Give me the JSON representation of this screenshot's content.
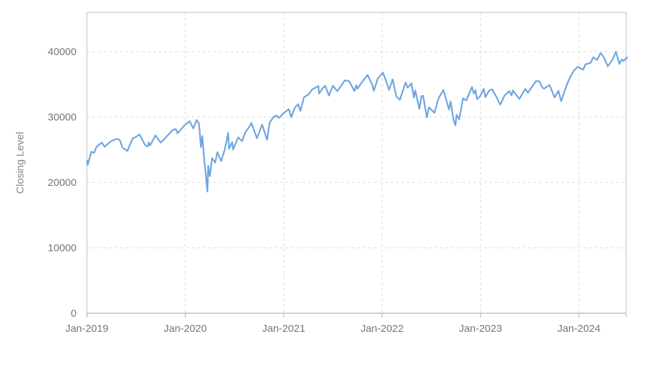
{
  "page": {
    "background": "#ffffff"
  },
  "chart_data": {
    "type": "line",
    "title": "",
    "xlabel": "",
    "ylabel": "Closing Level",
    "legend_position": "none",
    "grid": "dashed",
    "x_ticks": [
      2019,
      2020,
      2021,
      2022,
      2023,
      2024
    ],
    "x_tick_labels": [
      "Jan-2019",
      "Jan-2020",
      "Jan-2021",
      "Jan-2022",
      "Jan-2023",
      "Jan-2024"
    ],
    "y_ticks": [
      0,
      10000,
      20000,
      30000,
      40000
    ],
    "y_tick_labels": [
      "0",
      "10000",
      "20000",
      "30000",
      "40000"
    ],
    "ylim": [
      0,
      46000
    ],
    "xlim_decimal_years": [
      2019.0,
      2024.48
    ],
    "colors": {
      "line": "#6fa6e2",
      "grid": "#d9d9d9",
      "border": "#cccccc",
      "axis_line": "#b4c3da",
      "tick_text": "#757575",
      "axis_title_text": "#858585"
    },
    "series": [
      {
        "name": "Closing Level",
        "points": [
          [
            "2019-01-02",
            23346
          ],
          [
            "2019-01-04",
            22686
          ],
          [
            "2019-01-18",
            24706
          ],
          [
            "2019-01-28",
            24528
          ],
          [
            "2019-02-05",
            25411
          ],
          [
            "2019-02-25",
            26091
          ],
          [
            "2019-03-08",
            25450
          ],
          [
            "2019-03-21",
            25962
          ],
          [
            "2019-04-05",
            26425
          ],
          [
            "2019-04-23",
            26656
          ],
          [
            "2019-05-03",
            26505
          ],
          [
            "2019-05-13",
            25325
          ],
          [
            "2019-05-31",
            24815
          ],
          [
            "2019-06-20",
            26753
          ],
          [
            "2019-07-03",
            26966
          ],
          [
            "2019-07-15",
            27359
          ],
          [
            "2019-08-05",
            25718
          ],
          [
            "2019-08-14",
            25479
          ],
          [
            "2019-08-19",
            26136
          ],
          [
            "2019-08-23",
            25629
          ],
          [
            "2019-09-12",
            27182
          ],
          [
            "2019-10-02",
            26079
          ],
          [
            "2019-10-18",
            26770
          ],
          [
            "2019-11-15",
            28005
          ],
          [
            "2019-11-27",
            28164
          ],
          [
            "2019-12-03",
            27502
          ],
          [
            "2019-12-27",
            28645
          ],
          [
            "2020-01-02",
            28869
          ],
          [
            "2020-01-17",
            29348
          ],
          [
            "2020-01-31",
            28256
          ],
          [
            "2020-02-12",
            29551
          ],
          [
            "2020-02-21",
            28992
          ],
          [
            "2020-02-28",
            25409
          ],
          [
            "2020-03-04",
            27090
          ],
          [
            "2020-03-11",
            23553
          ],
          [
            "2020-03-17",
            21237
          ],
          [
            "2020-03-23",
            18592
          ],
          [
            "2020-03-26",
            22552
          ],
          [
            "2020-04-01",
            20943
          ],
          [
            "2020-04-09",
            23719
          ],
          [
            "2020-04-21",
            23019
          ],
          [
            "2020-04-29",
            24634
          ],
          [
            "2020-05-13",
            23248
          ],
          [
            "2020-05-26",
            24995
          ],
          [
            "2020-06-08",
            27572
          ],
          [
            "2020-06-11",
            25128
          ],
          [
            "2020-06-23",
            26156
          ],
          [
            "2020-06-26",
            25016
          ],
          [
            "2020-07-15",
            26870
          ],
          [
            "2020-07-30",
            26313
          ],
          [
            "2020-08-11",
            27686
          ],
          [
            "2020-08-28",
            28654
          ],
          [
            "2020-09-02",
            29100
          ],
          [
            "2020-09-23",
            26763
          ],
          [
            "2020-10-12",
            28838
          ],
          [
            "2020-10-30",
            26502
          ],
          [
            "2020-11-09",
            29158
          ],
          [
            "2020-11-24",
            30046
          ],
          [
            "2020-12-04",
            30218
          ],
          [
            "2020-12-14",
            29861
          ],
          [
            "2020-12-31",
            30606
          ],
          [
            "2021-01-20",
            31188
          ],
          [
            "2021-01-29",
            29983
          ],
          [
            "2021-02-12",
            31458
          ],
          [
            "2021-02-24",
            31962
          ],
          [
            "2021-03-04",
            30924
          ],
          [
            "2021-03-17",
            33015
          ],
          [
            "2021-04-05",
            33527
          ],
          [
            "2021-04-16",
            34201
          ],
          [
            "2021-05-10",
            34742
          ],
          [
            "2021-05-12",
            33588
          ],
          [
            "2021-05-28",
            34529
          ],
          [
            "2021-06-04",
            34756
          ],
          [
            "2021-06-18",
            33290
          ],
          [
            "2021-07-02",
            34786
          ],
          [
            "2021-07-19",
            33962
          ],
          [
            "2021-08-16",
            35625
          ],
          [
            "2021-09-02",
            35443
          ],
          [
            "2021-09-20",
            33970
          ],
          [
            "2021-09-27",
            34869
          ],
          [
            "2021-10-01",
            34326
          ],
          [
            "2021-10-26",
            35757
          ],
          [
            "2021-11-08",
            36432
          ],
          [
            "2021-11-26",
            34899
          ],
          [
            "2021-12-01",
            34022
          ],
          [
            "2021-12-16",
            35898
          ],
          [
            "2021-12-29",
            36488
          ],
          [
            "2022-01-04",
            36800
          ],
          [
            "2022-01-27",
            34160
          ],
          [
            "2022-02-09",
            35768
          ],
          [
            "2022-02-23",
            33131
          ],
          [
            "2022-03-08",
            32632
          ],
          [
            "2022-03-29",
            35294
          ],
          [
            "2022-04-06",
            34497
          ],
          [
            "2022-04-20",
            35160
          ],
          [
            "2022-04-29",
            32977
          ],
          [
            "2022-05-04",
            34061
          ],
          [
            "2022-05-19",
            31253
          ],
          [
            "2022-05-27",
            33213
          ],
          [
            "2022-06-02",
            33248
          ],
          [
            "2022-06-16",
            29927
          ],
          [
            "2022-06-24",
            31500
          ],
          [
            "2022-07-14",
            30630
          ],
          [
            "2022-07-29",
            32845
          ],
          [
            "2022-08-16",
            34152
          ],
          [
            "2022-09-06",
            31145
          ],
          [
            "2022-09-12",
            32381
          ],
          [
            "2022-09-23",
            29590
          ],
          [
            "2022-09-30",
            28726
          ],
          [
            "2022-10-04",
            30316
          ],
          [
            "2022-10-14",
            29635
          ],
          [
            "2022-10-28",
            32862
          ],
          [
            "2022-11-09",
            32514
          ],
          [
            "2022-11-30",
            34590
          ],
          [
            "2022-12-07",
            33598
          ],
          [
            "2022-12-13",
            34109
          ],
          [
            "2022-12-19",
            32758
          ],
          [
            "2022-12-30",
            33147
          ],
          [
            "2023-01-13",
            34303
          ],
          [
            "2023-01-19",
            33045
          ],
          [
            "2023-02-02",
            34054
          ],
          [
            "2023-02-13",
            34246
          ],
          [
            "2023-03-02",
            33003
          ],
          [
            "2023-03-15",
            31875
          ],
          [
            "2023-03-31",
            33274
          ],
          [
            "2023-04-18",
            33977
          ],
          [
            "2023-04-26",
            33302
          ],
          [
            "2023-05-01",
            34052
          ],
          [
            "2023-05-25",
            32765
          ],
          [
            "2023-06-16",
            34299
          ],
          [
            "2023-06-26",
            33715
          ],
          [
            "2023-07-26",
            35520
          ],
          [
            "2023-08-07",
            35473
          ],
          [
            "2023-08-18",
            34501
          ],
          [
            "2023-08-25",
            34347
          ],
          [
            "2023-09-14",
            34907
          ],
          [
            "2023-09-27",
            33550
          ],
          [
            "2023-10-03",
            33002
          ],
          [
            "2023-10-17",
            33998
          ],
          [
            "2023-10-27",
            32418
          ],
          [
            "2023-11-17",
            34947
          ],
          [
            "2023-12-01",
            36245
          ],
          [
            "2023-12-13",
            37090
          ],
          [
            "2023-12-28",
            37710
          ],
          [
            "2024-01-05",
            37466
          ],
          [
            "2024-01-17",
            37267
          ],
          [
            "2024-01-25",
            38049
          ],
          [
            "2024-02-13",
            38273
          ],
          [
            "2024-02-23",
            39132
          ],
          [
            "2024-03-08",
            38723
          ],
          [
            "2024-03-21",
            39781
          ],
          [
            "2024-04-02",
            39170
          ],
          [
            "2024-04-17",
            37753
          ],
          [
            "2024-05-03",
            38676
          ],
          [
            "2024-05-17",
            40004
          ],
          [
            "2024-05-30",
            38111
          ],
          [
            "2024-06-07",
            38799
          ],
          [
            "2024-06-14",
            38589
          ],
          [
            "2024-06-28",
            39119
          ]
        ]
      }
    ]
  }
}
